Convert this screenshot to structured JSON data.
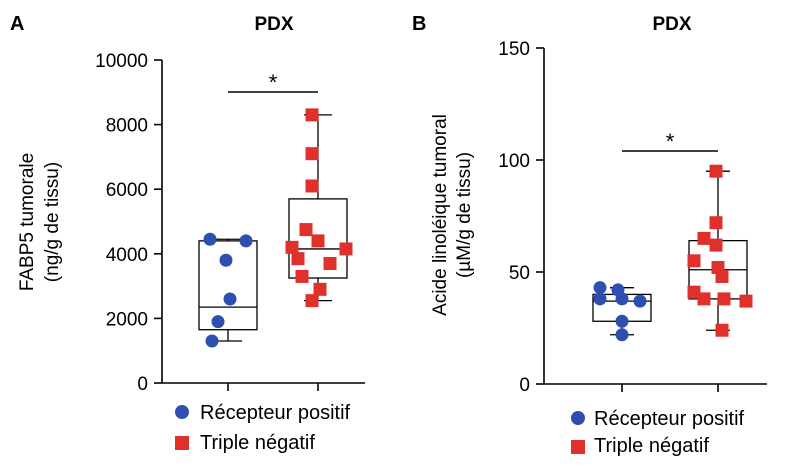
{
  "chart_data": [
    {
      "type": "box",
      "panel_label": "A",
      "title": "PDX",
      "ylabel_line1": "FABP5 tumorale",
      "ylabel_line2": "(ng/g de tissu)",
      "ylim": [
        0,
        10000
      ],
      "yticks": [
        "0",
        "2000",
        "4000",
        "6000",
        "8000",
        "10000"
      ],
      "significance": "*",
      "series": [
        {
          "name": "Récepteur positif",
          "marker": "circle",
          "color": "#2f4fb0",
          "values": [
            4450,
            4400,
            3800,
            2600,
            1900,
            1300
          ],
          "box": {
            "min": 1300,
            "q1": 1650,
            "median": 2350,
            "q3": 4400,
            "max": 4450
          }
        },
        {
          "name": "Triple négatif",
          "marker": "square",
          "color": "#e0302c",
          "values": [
            8300,
            7100,
            6100,
            4750,
            4400,
            4200,
            4150,
            3850,
            3700,
            3300,
            2900,
            2550
          ],
          "box": {
            "min": 2550,
            "q1": 3250,
            "median": 4150,
            "q3": 5700,
            "max": 8300
          }
        }
      ]
    },
    {
      "type": "box",
      "panel_label": "B",
      "title": "PDX",
      "ylabel_line1": "Acide linoléique tumoral",
      "ylabel_line2": "(µM/g de tissu)",
      "ylim": [
        0,
        150
      ],
      "yticks": [
        "0",
        "50",
        "100",
        "150"
      ],
      "significance": "*",
      "series": [
        {
          "name": "Récepteur positif",
          "marker": "circle",
          "color": "#2f4fb0",
          "values": [
            43,
            42,
            38,
            38,
            37,
            28,
            22
          ],
          "box": {
            "min": 22,
            "q1": 28,
            "median": 37,
            "q3": 40,
            "max": 43
          }
        },
        {
          "name": "Triple négatif",
          "marker": "square",
          "color": "#e0302c",
          "values": [
            95,
            72,
            65,
            62,
            55,
            52,
            48,
            41,
            38,
            38,
            37,
            24
          ],
          "box": {
            "min": 24,
            "q1": 38,
            "median": 51,
            "q3": 64,
            "max": 95
          }
        }
      ]
    }
  ],
  "legend": {
    "items": [
      {
        "label": "Récepteur positif",
        "color": "#2f4fb0",
        "marker": "circle"
      },
      {
        "label": "Triple négatif",
        "color": "#e0302c",
        "marker": "square"
      }
    ]
  }
}
